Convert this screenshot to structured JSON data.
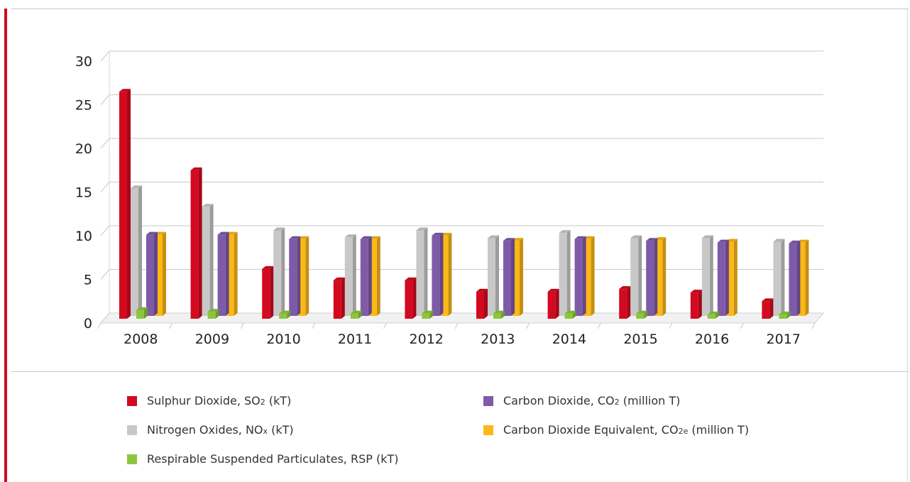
{
  "chart_data": {
    "type": "bar",
    "categories": [
      "2008",
      "2009",
      "2010",
      "2011",
      "2012",
      "2013",
      "2014",
      "2015",
      "2016",
      "2017"
    ],
    "series": [
      {
        "name": "Sulphur Dioxide, SO2 (kT)",
        "color": "#d3091f",
        "values": [
          26.0,
          17.0,
          5.7,
          4.4,
          4.4,
          3.1,
          3.1,
          3.4,
          3.0,
          2.0
        ]
      },
      {
        "name": "Nitrogen Oxides, NOx (kT)",
        "color": "#c8c8c8",
        "values": [
          14.6,
          12.5,
          9.8,
          9.0,
          9.8,
          8.9,
          9.5,
          8.9,
          8.9,
          8.5
        ]
      },
      {
        "name": "Respirable Suspended Particulates, RSP (kT)",
        "color": "#8cc63f",
        "values": [
          1.0,
          0.8,
          0.6,
          0.6,
          0.6,
          0.6,
          0.6,
          0.6,
          0.5,
          0.5
        ]
      },
      {
        "name": "Carbon Dioxide, CO2 (million T)",
        "color": "#7f5aa8",
        "values": [
          9.3,
          9.3,
          8.8,
          8.8,
          9.2,
          8.6,
          8.8,
          8.6,
          8.4,
          8.3
        ]
      },
      {
        "name": "Carbon Dioxide Equivalent, CO2e (million T)",
        "color": "#fbb817",
        "values": [
          9.3,
          9.3,
          8.8,
          8.8,
          9.2,
          8.6,
          8.8,
          8.7,
          8.5,
          8.4
        ]
      }
    ],
    "yticks": [
      "0",
      "5",
      "10",
      "15",
      "20",
      "25",
      "30"
    ],
    "ylim": [
      0,
      30
    ],
    "grid": true,
    "legend_position": "bottom"
  },
  "legend": [
    {
      "name": "Sulphur Dioxide, SO",
      "sub": "2",
      "unit": " (kT)",
      "color": "#d3091f"
    },
    {
      "name": "Carbon Dioxide, CO",
      "sub": "2",
      "unit": " (million T)",
      "color": "#7f5aa8"
    },
    {
      "name": "Nitrogen Oxides, NO",
      "sub": "x",
      "unit": " (kT)",
      "color": "#c8c8c8"
    },
    {
      "name": "Carbon Dioxide Equivalent, CO",
      "sub": "2",
      "subtail": "e",
      "unit": " (million T)",
      "color": "#fbb817"
    },
    {
      "name": "Respirable Suspended Particulates, RSP (kT)",
      "sub": "",
      "unit": "",
      "color": "#8cc63f"
    }
  ]
}
